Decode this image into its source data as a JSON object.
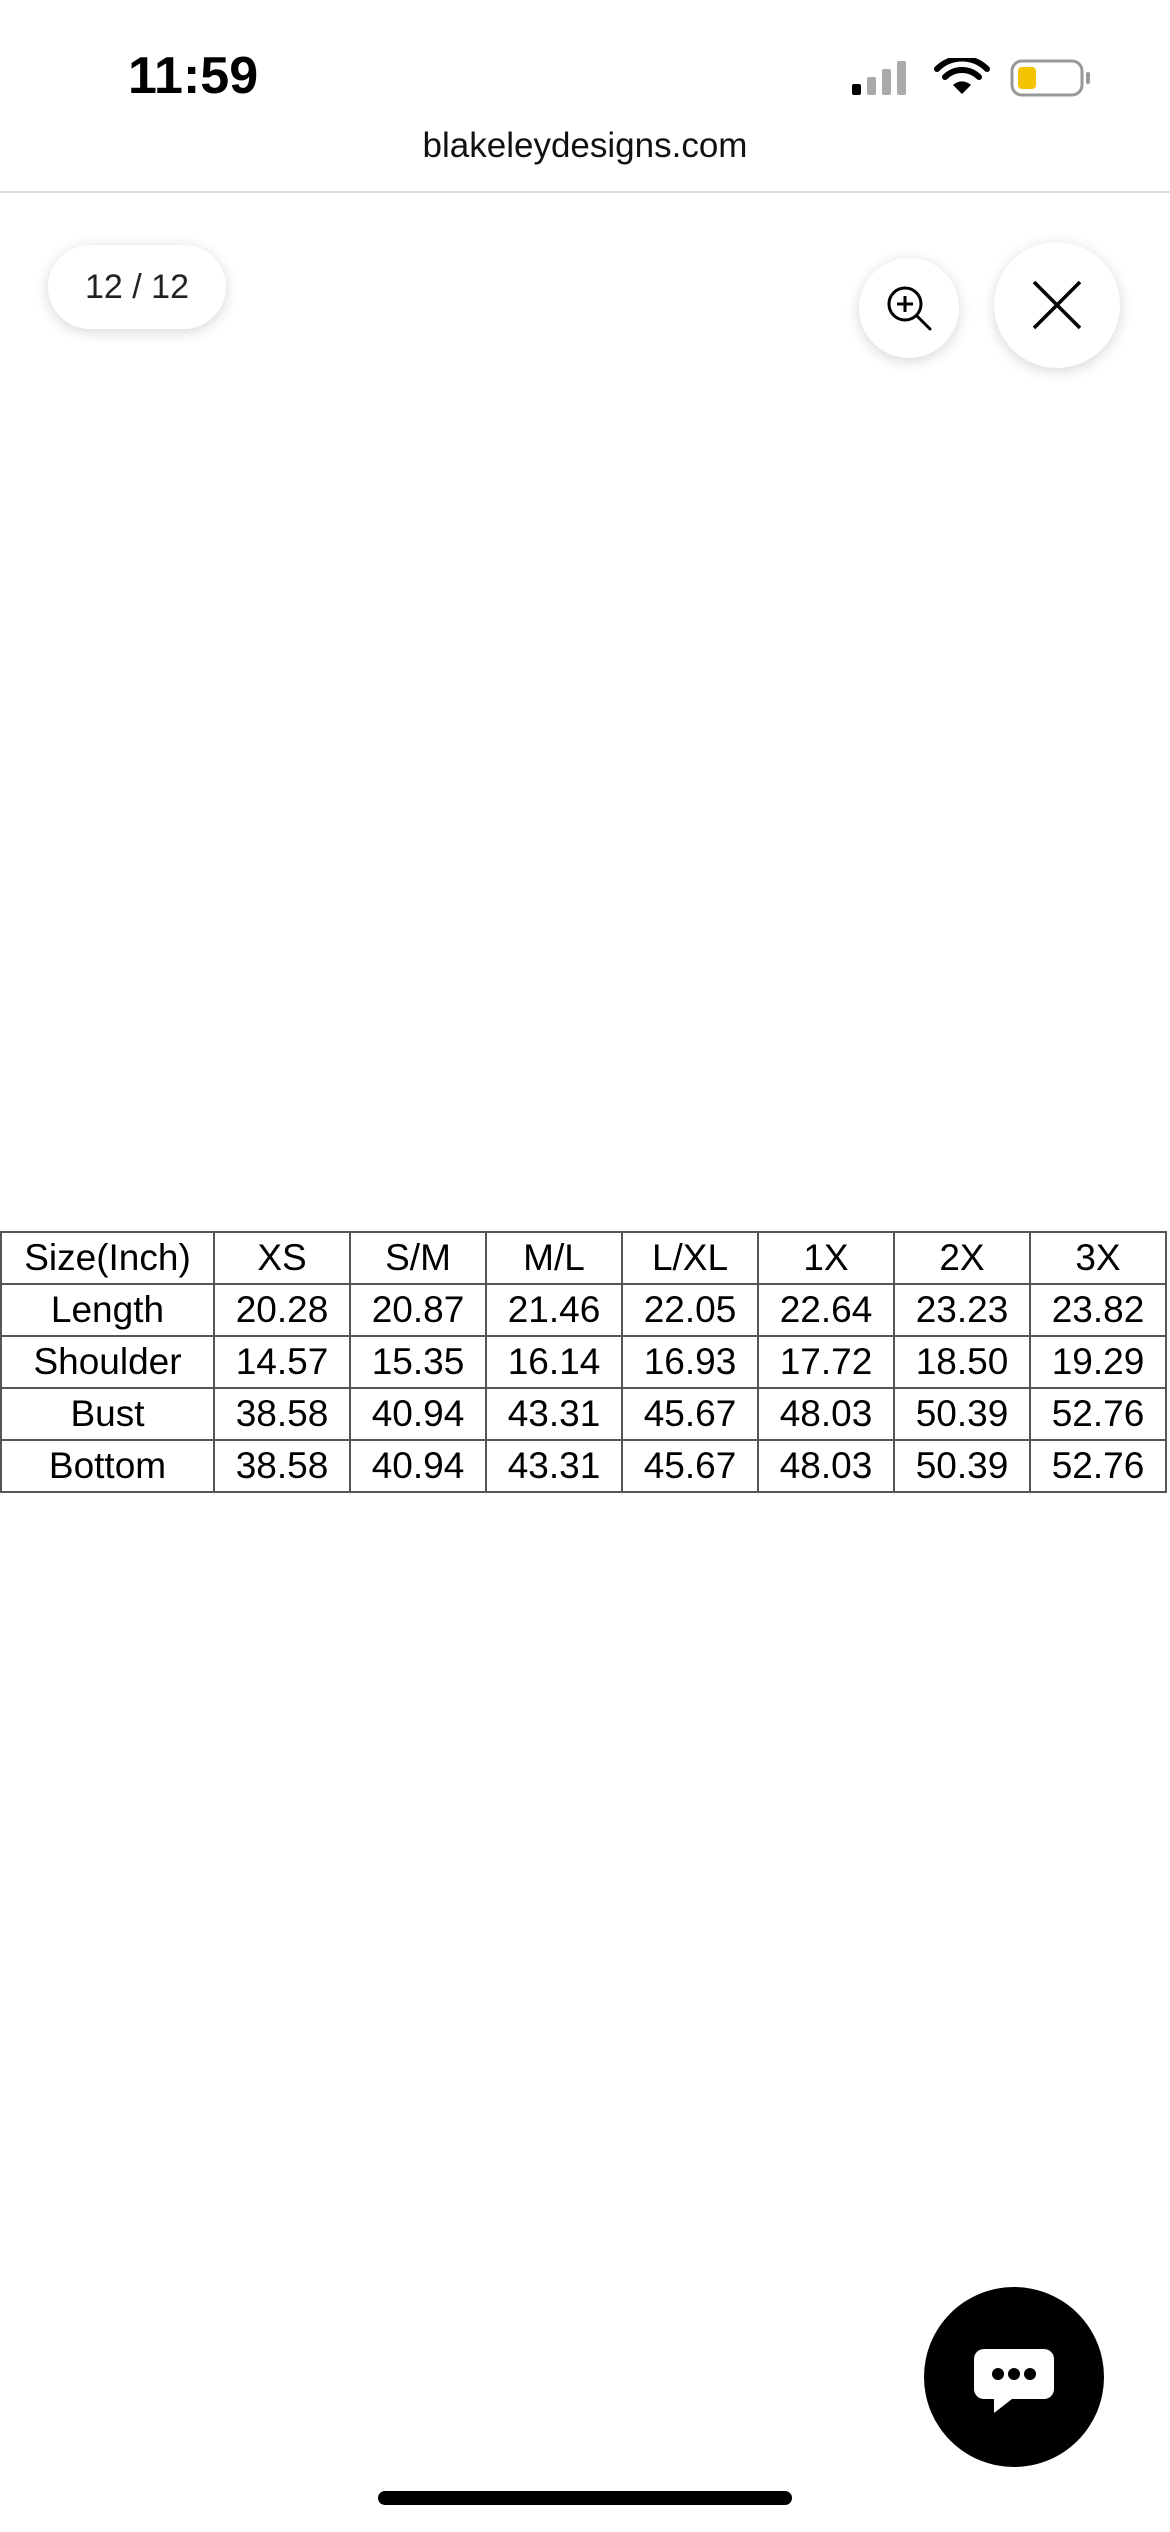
{
  "status_bar": {
    "time": "11:59"
  },
  "browser": {
    "url": "blakeleydesigns.com"
  },
  "viewer": {
    "counter": "12 / 12"
  },
  "table": {
    "header": [
      "Size(Inch)",
      "XS",
      "S/M",
      "M/L",
      "L/XL",
      "1X",
      "2X",
      "3X"
    ],
    "rows": [
      [
        "Length",
        "20.28",
        "20.87",
        "21.46",
        "22.05",
        "22.64",
        "23.23",
        "23.82"
      ],
      [
        "Shoulder",
        "14.57",
        "15.35",
        "16.14",
        "16.93",
        "17.72",
        "18.50",
        "19.29"
      ],
      [
        "Bust",
        "38.58",
        "40.94",
        "43.31",
        "45.67",
        "48.03",
        "50.39",
        "52.76"
      ],
      [
        "Bottom",
        "38.58",
        "40.94",
        "43.31",
        "45.67",
        "48.03",
        "50.39",
        "52.76"
      ]
    ]
  }
}
